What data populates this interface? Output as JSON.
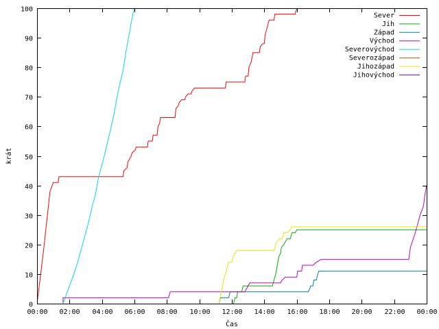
{
  "chart_data": {
    "type": "line",
    "xlabel": "Čas",
    "ylabel": "krát",
    "xlim": [
      0,
      24
    ],
    "ylim": [
      0,
      100
    ],
    "x_ticks": [
      "00:00",
      "02:00",
      "04:00",
      "06:00",
      "08:00",
      "10:00",
      "12:00",
      "14:00",
      "16:00",
      "18:00",
      "20:00",
      "22:00",
      "00:00"
    ],
    "y_ticks": [
      0,
      10,
      20,
      30,
      40,
      50,
      60,
      70,
      80,
      90,
      100
    ],
    "grid": false,
    "legend_position": "top-right",
    "series": [
      {
        "name": "Sever",
        "color": "#ff0000",
        "points": [
          [
            0,
            0
          ],
          [
            0.4,
            18
          ],
          [
            0.8,
            38
          ],
          [
            1.0,
            41
          ],
          [
            1.3,
            41
          ],
          [
            1.35,
            43
          ],
          [
            5.3,
            43
          ],
          [
            5.35,
            45
          ],
          [
            5.55,
            46
          ],
          [
            5.6,
            48
          ],
          [
            5.8,
            50
          ],
          [
            5.85,
            51
          ],
          [
            6.05,
            52
          ],
          [
            6.1,
            53
          ],
          [
            6.8,
            53
          ],
          [
            6.85,
            55
          ],
          [
            7.1,
            55
          ],
          [
            7.15,
            57
          ],
          [
            7.4,
            57
          ],
          [
            7.45,
            60
          ],
          [
            7.55,
            61
          ],
          [
            7.6,
            63
          ],
          [
            8.5,
            63
          ],
          [
            8.55,
            66
          ],
          [
            8.7,
            67
          ],
          [
            8.75,
            68
          ],
          [
            8.9,
            69
          ],
          [
            9.1,
            69
          ],
          [
            9.15,
            70
          ],
          [
            9.3,
            71
          ],
          [
            9.5,
            71
          ],
          [
            9.55,
            72
          ],
          [
            9.7,
            73
          ],
          [
            11.6,
            73
          ],
          [
            11.65,
            75
          ],
          [
            12.8,
            75
          ],
          [
            12.85,
            77
          ],
          [
            13.0,
            77
          ],
          [
            13.05,
            80
          ],
          [
            13.2,
            82
          ],
          [
            13.3,
            85
          ],
          [
            13.7,
            85
          ],
          [
            13.75,
            87
          ],
          [
            13.9,
            88
          ],
          [
            14.0,
            88
          ],
          [
            14.05,
            91
          ],
          [
            14.15,
            93
          ],
          [
            14.3,
            96
          ],
          [
            14.6,
            96
          ],
          [
            14.65,
            98
          ],
          [
            15.9,
            98
          ],
          [
            16.0,
            100
          ]
        ]
      },
      {
        "name": "Jih",
        "color": "#00b000",
        "points": [
          [
            12.1,
            0
          ],
          [
            12.2,
            2
          ],
          [
            12.3,
            2
          ],
          [
            12.35,
            4
          ],
          [
            12.6,
            4
          ],
          [
            12.7,
            6
          ],
          [
            14.5,
            6
          ],
          [
            14.6,
            8
          ],
          [
            14.7,
            10
          ],
          [
            14.8,
            13
          ],
          [
            14.9,
            16
          ],
          [
            15.0,
            17
          ],
          [
            15.05,
            19
          ],
          [
            15.2,
            20
          ],
          [
            15.3,
            21
          ],
          [
            15.4,
            22
          ],
          [
            15.6,
            22
          ],
          [
            15.7,
            24
          ],
          [
            15.9,
            24
          ],
          [
            16.0,
            25
          ],
          [
            24,
            25
          ]
        ]
      },
      {
        "name": "Západ",
        "color": "#0080a0",
        "points": [
          [
            11.2,
            0
          ],
          [
            11.3,
            2
          ],
          [
            11.8,
            2
          ],
          [
            11.9,
            4
          ],
          [
            16.7,
            4
          ],
          [
            16.8,
            5
          ],
          [
            16.85,
            6
          ],
          [
            17.0,
            6
          ],
          [
            17.05,
            8
          ],
          [
            17.2,
            8
          ],
          [
            17.3,
            10
          ],
          [
            17.35,
            11
          ],
          [
            24,
            11
          ]
        ]
      },
      {
        "name": "Východ",
        "color": "#c000c0",
        "points": [
          [
            1.6,
            0
          ],
          [
            1.6,
            2
          ],
          [
            8.1,
            2
          ],
          [
            8.2,
            4
          ],
          [
            12.8,
            4
          ],
          [
            12.9,
            5
          ],
          [
            13.0,
            6
          ],
          [
            13.1,
            7
          ],
          [
            15.0,
            7
          ],
          [
            15.1,
            8
          ],
          [
            15.3,
            9
          ],
          [
            16.0,
            9
          ],
          [
            16.05,
            11
          ],
          [
            16.3,
            11
          ],
          [
            16.35,
            13
          ],
          [
            17.0,
            13
          ],
          [
            17.2,
            14
          ],
          [
            17.5,
            15
          ],
          [
            22.9,
            15
          ],
          [
            23.0,
            19
          ],
          [
            23.3,
            24
          ],
          [
            23.6,
            30
          ],
          [
            23.8,
            33
          ],
          [
            23.9,
            37
          ],
          [
            24,
            40
          ]
        ]
      },
      {
        "name": "Severovýchod",
        "color": "#00d8e8",
        "points": [
          [
            1.6,
            0
          ],
          [
            1.8,
            3
          ],
          [
            2.0,
            6
          ],
          [
            2.2,
            9
          ],
          [
            2.5,
            14
          ],
          [
            2.8,
            20
          ],
          [
            3.1,
            26
          ],
          [
            3.4,
            33
          ],
          [
            3.6,
            37
          ],
          [
            3.8,
            43
          ],
          [
            4.1,
            49
          ],
          [
            4.4,
            56
          ],
          [
            4.7,
            63
          ],
          [
            5.0,
            72
          ],
          [
            5.3,
            79
          ],
          [
            5.5,
            86
          ],
          [
            5.7,
            92
          ],
          [
            5.9,
            98
          ],
          [
            6.0,
            100
          ]
        ]
      },
      {
        "name": "Severozápad",
        "color": "#c06000",
        "points": []
      },
      {
        "name": "Jihozápad",
        "color": "#e8e800",
        "points": [
          [
            11.2,
            0
          ],
          [
            11.5,
            8
          ],
          [
            11.7,
            12
          ],
          [
            11.8,
            14
          ],
          [
            12.0,
            14
          ],
          [
            12.1,
            16
          ],
          [
            12.3,
            18
          ],
          [
            14.6,
            18
          ],
          [
            14.7,
            20
          ],
          [
            14.9,
            22
          ],
          [
            15.1,
            22
          ],
          [
            15.2,
            24
          ],
          [
            15.4,
            24
          ],
          [
            15.6,
            25
          ],
          [
            15.7,
            26
          ],
          [
            24,
            26
          ]
        ]
      },
      {
        "name": "Jihovýchod",
        "color": "#6000a0",
        "points": []
      }
    ]
  }
}
